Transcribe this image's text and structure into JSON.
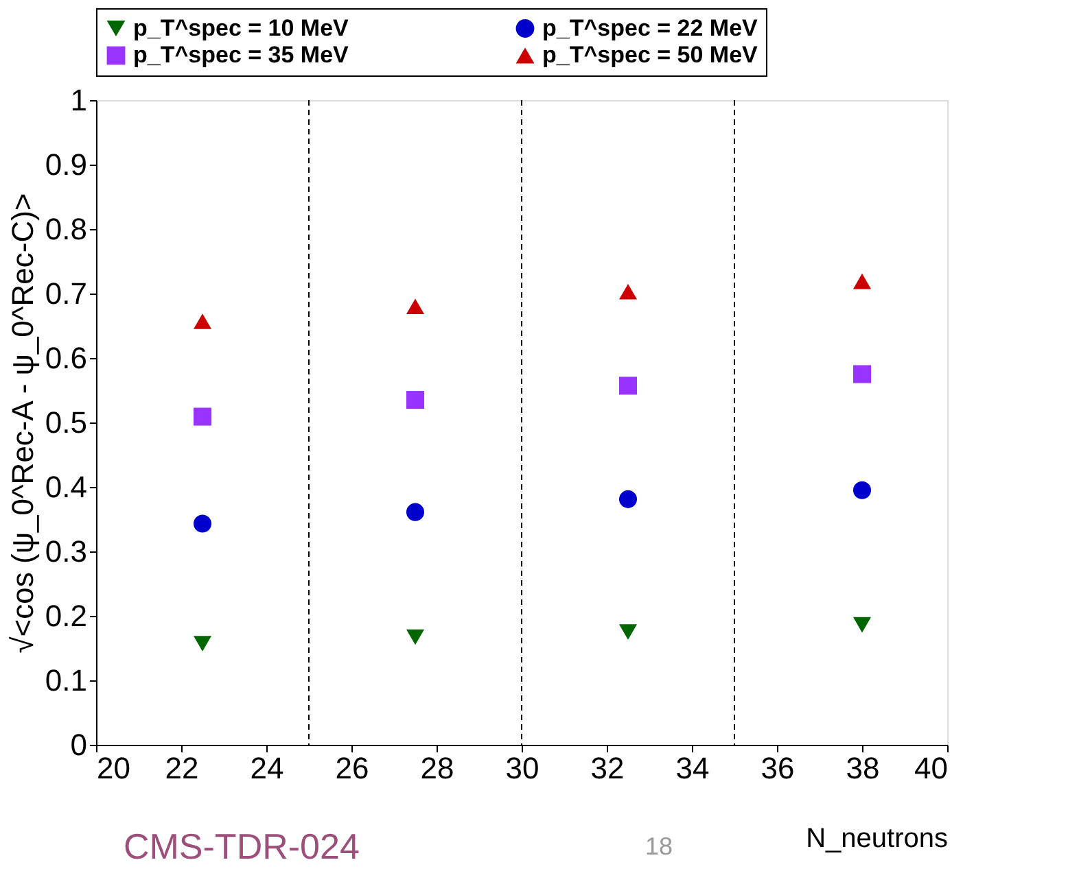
{
  "chart_data": {
    "type": "scatter",
    "xlabel": "N_neutrons",
    "ylabel": "√<cos (ψ_0^Rec-A - ψ_0^Rec-C)>",
    "x": [
      22.5,
      27.5,
      32.5,
      38
    ],
    "series": [
      {
        "name": "p_T^spec = 10 MeV",
        "color": "#006600",
        "marker": "triangle-down",
        "values": [
          0.157,
          0.167,
          0.175,
          0.186
        ]
      },
      {
        "name": "p_T^spec = 22 MeV",
        "color": "#0000cc",
        "marker": "circle",
        "values": [
          0.343,
          0.361,
          0.381,
          0.395
        ]
      },
      {
        "name": "p_T^spec = 35 MeV",
        "color": "#9933ff",
        "marker": "square",
        "values": [
          0.509,
          0.535,
          0.557,
          0.575
        ]
      },
      {
        "name": "p_T^spec = 50 MeV",
        "color": "#cc0000",
        "marker": "triangle",
        "values": [
          0.657,
          0.68,
          0.703,
          0.719
        ]
      }
    ],
    "xlim": [
      20,
      40
    ],
    "xticks": [
      20,
      22,
      24,
      26,
      28,
      30,
      32,
      34,
      36,
      38,
      40
    ],
    "ylim": [
      0,
      1
    ],
    "yticks": [
      0,
      0.1,
      0.2,
      0.3,
      0.4,
      0.5,
      0.6,
      0.7,
      0.8,
      0.9,
      1
    ],
    "ref_lines": [
      {
        "axis": "x",
        "value": 25,
        "line_style": "dashed",
        "color": "#000000"
      },
      {
        "axis": "x",
        "value": 30,
        "line_style": "dashed",
        "color": "#000000"
      },
      {
        "axis": "x",
        "value": 35,
        "line_style": "dashed",
        "color": "#000000"
      }
    ],
    "annotations": [
      "CMS-TDR-024",
      "18"
    ],
    "legend": "top",
    "grid": false
  }
}
